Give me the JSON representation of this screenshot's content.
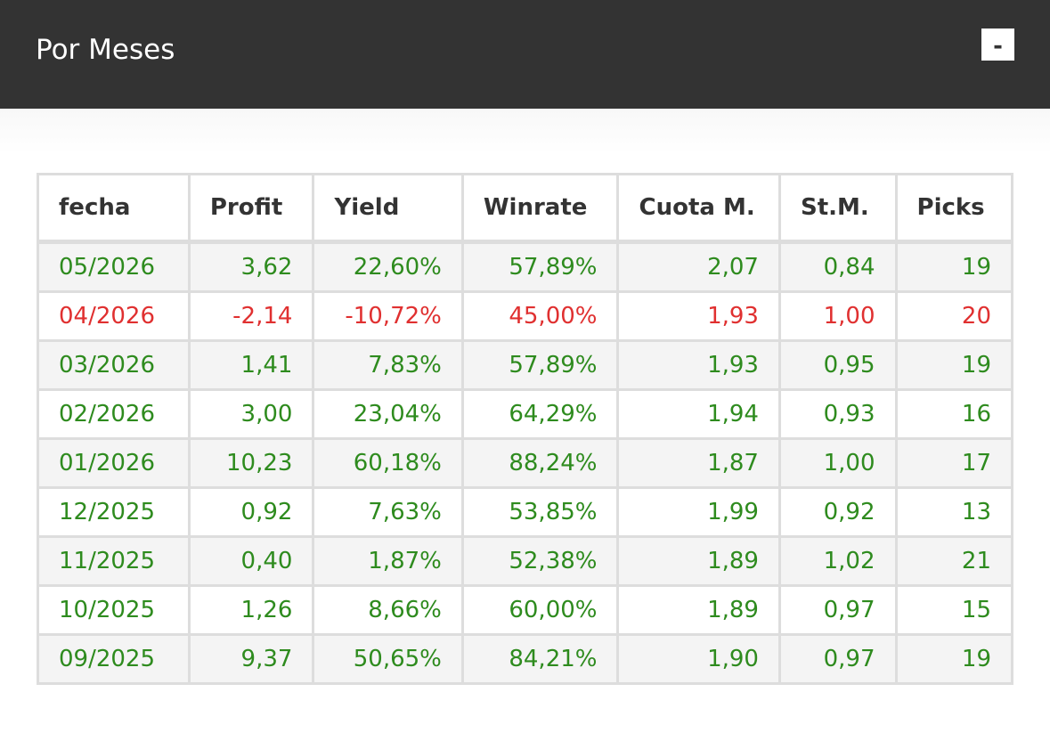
{
  "header": {
    "title": "Por Meses",
    "collapse_label": "-"
  },
  "colors": {
    "positive": "#2e8b1e",
    "negative": "#e03030",
    "header_bg": "#333333"
  },
  "table": {
    "columns": [
      "fecha",
      "Profit",
      "Yield",
      "Winrate",
      "Cuota M.",
      "St.M.",
      "Picks"
    ],
    "rows": [
      {
        "fecha": "05/2026",
        "profit": "3,62",
        "yield": "22,60%",
        "winrate": "57,89%",
        "cuota": "2,07",
        "stm": "0,84",
        "picks": "19",
        "status": "positive"
      },
      {
        "fecha": "04/2026",
        "profit": "-2,14",
        "yield": "-10,72%",
        "winrate": "45,00%",
        "cuota": "1,93",
        "stm": "1,00",
        "picks": "20",
        "status": "negative"
      },
      {
        "fecha": "03/2026",
        "profit": "1,41",
        "yield": "7,83%",
        "winrate": "57,89%",
        "cuota": "1,93",
        "stm": "0,95",
        "picks": "19",
        "status": "positive"
      },
      {
        "fecha": "02/2026",
        "profit": "3,00",
        "yield": "23,04%",
        "winrate": "64,29%",
        "cuota": "1,94",
        "stm": "0,93",
        "picks": "16",
        "status": "positive"
      },
      {
        "fecha": "01/2026",
        "profit": "10,23",
        "yield": "60,18%",
        "winrate": "88,24%",
        "cuota": "1,87",
        "stm": "1,00",
        "picks": "17",
        "status": "positive"
      },
      {
        "fecha": "12/2025",
        "profit": "0,92",
        "yield": "7,63%",
        "winrate": "53,85%",
        "cuota": "1,99",
        "stm": "0,92",
        "picks": "13",
        "status": "positive"
      },
      {
        "fecha": "11/2025",
        "profit": "0,40",
        "yield": "1,87%",
        "winrate": "52,38%",
        "cuota": "1,89",
        "stm": "1,02",
        "picks": "21",
        "status": "positive"
      },
      {
        "fecha": "10/2025",
        "profit": "1,26",
        "yield": "8,66%",
        "winrate": "60,00%",
        "cuota": "1,89",
        "stm": "0,97",
        "picks": "15",
        "status": "positive"
      },
      {
        "fecha": "09/2025",
        "profit": "9,37",
        "yield": "50,65%",
        "winrate": "84,21%",
        "cuota": "1,90",
        "stm": "0,97",
        "picks": "19",
        "status": "positive"
      }
    ]
  }
}
